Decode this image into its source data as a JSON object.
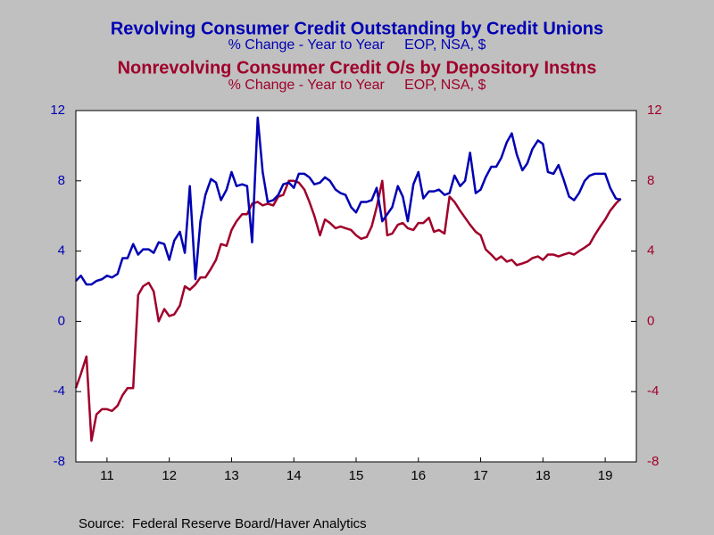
{
  "chart_data": {
    "type": "line",
    "source": "Source:  Federal Reserve Board/Haver Analytics",
    "x": [
      2011.0,
      2011.08,
      2011.17,
      2011.25,
      2011.33,
      2011.42,
      2011.5,
      2011.58,
      2011.67,
      2011.75,
      2011.83,
      2011.92,
      2012.0,
      2012.08,
      2012.17,
      2012.25,
      2012.33,
      2012.42,
      2012.5,
      2012.58,
      2012.67,
      2012.75,
      2012.83,
      2012.92,
      2013.0,
      2013.08,
      2013.17,
      2013.25,
      2013.33,
      2013.42,
      2013.5,
      2013.58,
      2013.67,
      2013.75,
      2013.83,
      2013.92,
      2014.0,
      2014.08,
      2014.17,
      2014.25,
      2014.33,
      2014.42,
      2014.5,
      2014.58,
      2014.67,
      2014.75,
      2014.83,
      2014.92,
      2015.0,
      2015.08,
      2015.17,
      2015.25,
      2015.33,
      2015.42,
      2015.5,
      2015.58,
      2015.67,
      2015.75,
      2015.83,
      2015.92,
      2016.0,
      2016.08,
      2016.17,
      2016.25,
      2016.33,
      2016.42,
      2016.5,
      2016.58,
      2016.67,
      2016.75,
      2016.83,
      2016.92,
      2017.0,
      2017.08,
      2017.17,
      2017.25,
      2017.33,
      2017.42,
      2017.5,
      2017.58,
      2017.67,
      2017.75,
      2017.83,
      2017.92,
      2018.0,
      2018.08,
      2018.17,
      2018.25,
      2018.33,
      2018.42,
      2018.5,
      2018.58,
      2018.67,
      2018.75,
      2018.83,
      2018.92,
      2019.0,
      2019.08,
      2019.17,
      2019.25,
      2019.33,
      2019.42,
      2019.5,
      2019.58,
      2019.67,
      2019.75
    ],
    "series": [
      {
        "name": "Revolving Consumer Credit Outstanding by Credit Unions",
        "subtitle": "% Change - Year to Year     EOP, NSA, $",
        "color": "#0000b4",
        "axis": "y",
        "values": [
          2.3,
          2.6,
          2.1,
          2.1,
          2.3,
          2.4,
          2.6,
          2.5,
          2.7,
          3.6,
          3.6,
          4.4,
          3.8,
          4.1,
          4.1,
          3.9,
          4.5,
          4.4,
          3.5,
          4.6,
          5.1,
          3.9,
          7.7,
          2.4,
          5.7,
          7.2,
          8.1,
          7.9,
          6.9,
          7.5,
          8.5,
          7.7,
          7.8,
          7.7,
          4.5,
          11.6,
          8.5,
          6.8,
          6.9,
          7.2,
          7.8,
          7.9,
          7.6,
          8.4,
          8.4,
          8.2,
          7.8,
          7.9,
          8.2,
          8.0,
          7.5,
          7.3,
          7.2,
          6.5,
          6.2,
          6.8,
          6.8,
          6.9,
          7.6,
          5.7,
          6.1,
          6.5,
          7.7,
          7.1,
          5.7,
          7.8,
          8.5,
          7.0,
          7.4,
          7.4,
          7.5,
          7.2,
          7.3,
          8.3,
          7.7,
          8.0,
          9.6,
          7.3,
          7.5,
          8.2,
          8.8,
          8.8,
          9.3,
          10.2,
          10.7,
          9.5,
          8.6,
          9.0,
          9.8,
          10.3,
          10.1,
          8.5,
          8.4,
          8.9,
          8.1,
          7.1,
          6.9,
          7.3,
          8.0,
          8.3,
          8.4,
          8.4,
          8.4,
          7.6,
          7.0,
          6.9
        ]
      },
      {
        "name": "Nonrevolving Consumer Credit O/s by Depository Instns",
        "subtitle": "% Change - Year to Year     EOP, NSA, $",
        "color": "#a0002a",
        "axis": "y2",
        "values": [
          -3.8,
          -3.0,
          -2.0,
          -6.8,
          -5.3,
          -5.0,
          -5.0,
          -5.1,
          -4.8,
          -4.2,
          -3.8,
          -3.8,
          1.5,
          2.0,
          2.2,
          1.7,
          0.0,
          0.7,
          0.3,
          0.4,
          0.9,
          2.0,
          1.8,
          2.1,
          2.5,
          2.5,
          3.0,
          3.5,
          4.4,
          4.3,
          5.2,
          5.7,
          6.1,
          6.1,
          6.7,
          6.8,
          6.6,
          6.7,
          6.6,
          7.1,
          7.2,
          8.0,
          8.0,
          7.9,
          7.5,
          6.8,
          6.0,
          4.9,
          5.8,
          5.6,
          5.3,
          5.4,
          5.3,
          5.2,
          4.9,
          4.7,
          4.8,
          5.4,
          6.5,
          8.0,
          4.9,
          5.0,
          5.5,
          5.6,
          5.3,
          5.2,
          5.6,
          5.6,
          5.9,
          5.1,
          5.2,
          5.0,
          7.1,
          6.8,
          6.3,
          5.9,
          5.5,
          5.1,
          4.9,
          4.1,
          3.8,
          3.5,
          3.7,
          3.4,
          3.5,
          3.2,
          3.3,
          3.4,
          3.6,
          3.7,
          3.5,
          3.8,
          3.8,
          3.7,
          3.8,
          3.9,
          3.8,
          4.0,
          4.2,
          4.4,
          4.9,
          5.4,
          5.8,
          6.3,
          6.7,
          7.0
        ]
      }
    ],
    "xlim": [
      2011,
      2020
    ],
    "xticks": [
      {
        "value": 2011.5,
        "label": "11"
      },
      {
        "value": 2012.5,
        "label": "12"
      },
      {
        "value": 2013.5,
        "label": "13"
      },
      {
        "value": 2014.5,
        "label": "14"
      },
      {
        "value": 2015.5,
        "label": "15"
      },
      {
        "value": 2016.5,
        "label": "16"
      },
      {
        "value": 2017.5,
        "label": "17"
      },
      {
        "value": 2018.5,
        "label": "18"
      },
      {
        "value": 2019.5,
        "label": "19"
      }
    ],
    "ylim": [
      -8,
      12
    ],
    "yticks": [
      -8,
      -4,
      0,
      4,
      8,
      12
    ],
    "y2lim": [
      -8,
      12
    ],
    "y2ticks": [
      -8,
      -4,
      0,
      4,
      8,
      12
    ]
  }
}
